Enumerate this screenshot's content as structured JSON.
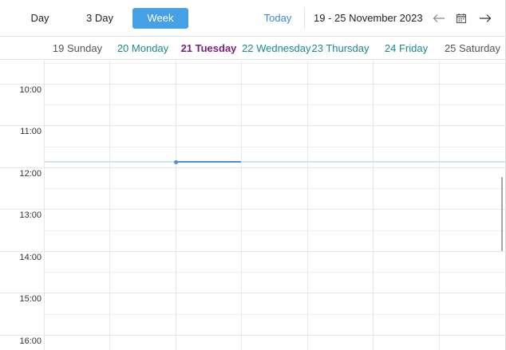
{
  "toolbar": {
    "views": [
      {
        "label": "Day",
        "active": false
      },
      {
        "label": "3 Day",
        "active": false
      },
      {
        "label": "Week",
        "active": true
      }
    ],
    "today_label": "Today",
    "date_range": "19  - 25 November 2023",
    "icons": {
      "prev": "arrow-left-icon",
      "calendar": "calendar-icon",
      "next": "arrow-right-icon"
    }
  },
  "days": [
    {
      "label": "19 Sunday",
      "style": "weekend"
    },
    {
      "label": "20 Monday",
      "style": "weekday"
    },
    {
      "label": "21 Tuesday",
      "style": "today"
    },
    {
      "label": "22 Wednesday",
      "style": "weekday"
    },
    {
      "label": "23 Thursday",
      "style": "weekday"
    },
    {
      "label": "24 Friday",
      "style": "weekday"
    },
    {
      "label": "25 Saturday",
      "style": "weekend"
    }
  ],
  "times": [
    "10:00",
    "11:00",
    "12:00",
    "13:00",
    "14:00",
    "15:00",
    "16:00"
  ],
  "colors": {
    "accent": "#46a0e6",
    "weekday_header": "#1a8a8a",
    "weekend_header": "#555555",
    "today_header": "#7a1e7e",
    "now_indicator": "#4a90d4"
  }
}
